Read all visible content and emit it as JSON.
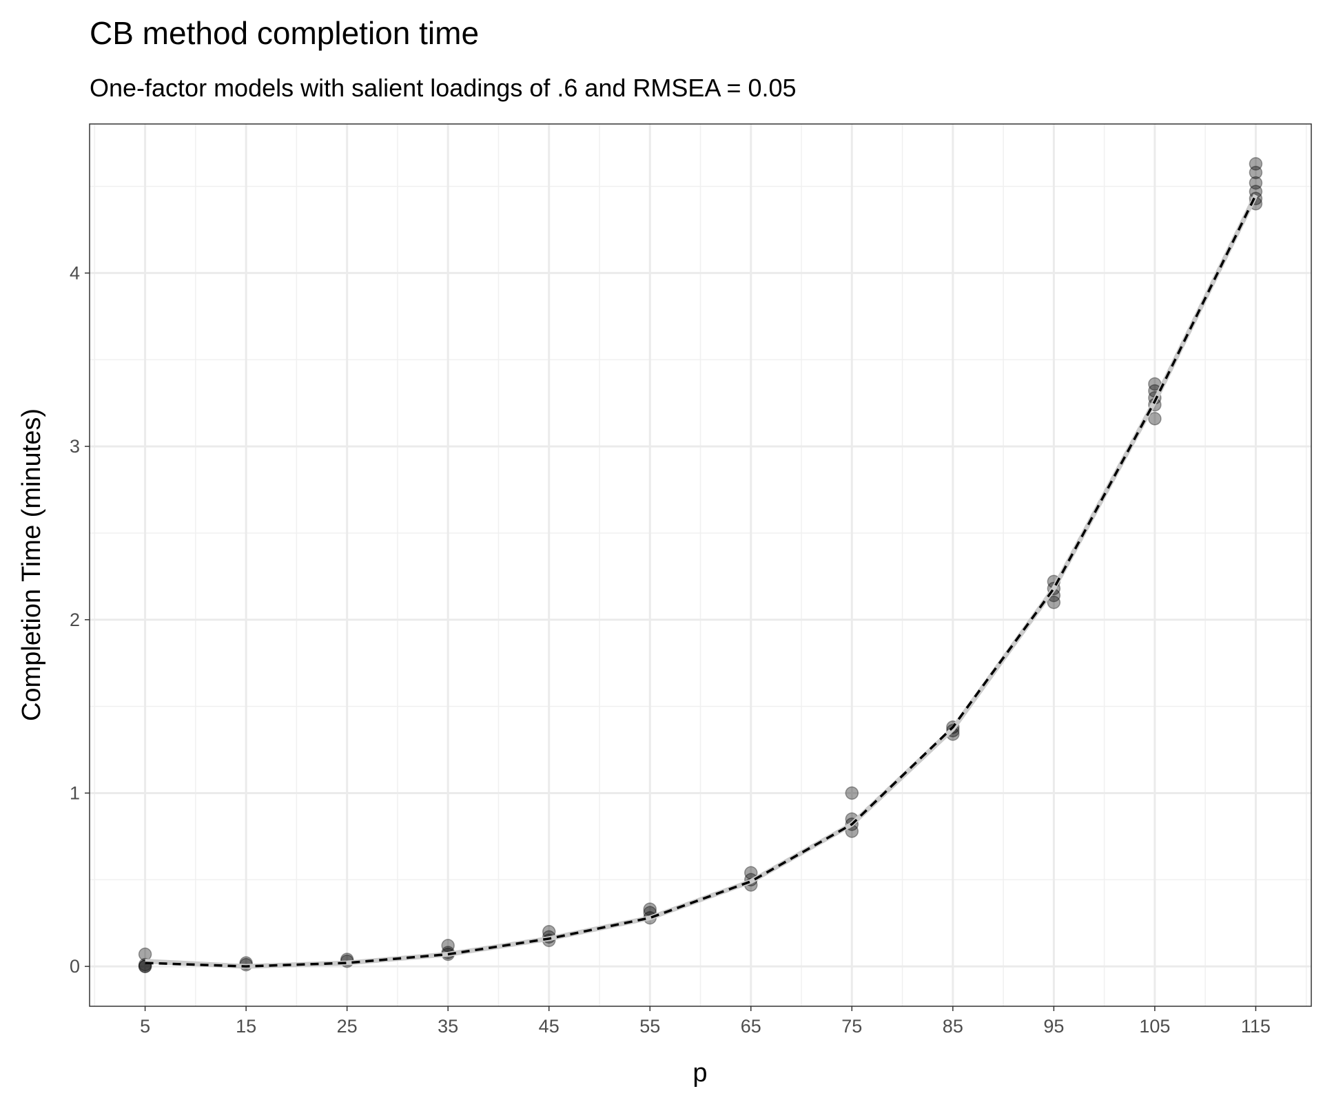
{
  "chart_data": {
    "type": "scatter",
    "title": "CB method completion time",
    "subtitle": "One-factor models with salient loadings of .6 and RMSEA = 0.05",
    "x_label": "p",
    "y_label": "Completion Time (minutes)",
    "xlim": [
      -0.5,
      120.5
    ],
    "ylim": [
      -0.23,
      4.86
    ],
    "xticks": [
      5,
      15,
      25,
      35,
      45,
      55,
      65,
      75,
      85,
      95,
      105,
      115
    ],
    "yticks": [
      0,
      1,
      2,
      3,
      4
    ],
    "xminor_ticks": [
      0,
      10,
      20,
      30,
      40,
      50,
      60,
      70,
      80,
      90,
      100,
      110,
      120
    ],
    "yminor_ticks": [
      0.5,
      1.5,
      2.5,
      3.5,
      4.5
    ],
    "grid": true,
    "series": [
      {
        "type": "scatter",
        "color": "#000000",
        "opacity": 0.35,
        "x": [
          5,
          5,
          5,
          5,
          15,
          15,
          25,
          25,
          35,
          35,
          35,
          45,
          45,
          45,
          55,
          55,
          55,
          65,
          65,
          65,
          75,
          75,
          75,
          75,
          85,
          85,
          85,
          95,
          95,
          95,
          95,
          105,
          105,
          105,
          105,
          105,
          115,
          115,
          115,
          115,
          115,
          115
        ],
        "y": [
          0.07,
          0.0,
          0.01,
          0.0,
          0.02,
          0.01,
          0.04,
          0.03,
          0.12,
          0.08,
          0.07,
          0.2,
          0.15,
          0.17,
          0.33,
          0.28,
          0.31,
          0.54,
          0.5,
          0.47,
          1.0,
          0.85,
          0.82,
          0.78,
          1.38,
          1.36,
          1.34,
          2.22,
          2.18,
          2.14,
          2.1,
          3.36,
          3.32,
          3.28,
          3.24,
          3.16,
          4.63,
          4.58,
          4.52,
          4.47,
          4.43,
          4.4
        ]
      },
      {
        "type": "smooth",
        "color": "#cccccc",
        "x": [
          5,
          15,
          25,
          35,
          45,
          55,
          65,
          75,
          85,
          95,
          105,
          115
        ],
        "y": [
          0.03,
          0.0,
          0.02,
          0.07,
          0.16,
          0.28,
          0.49,
          0.82,
          1.37,
          2.18,
          3.26,
          4.45
        ]
      },
      {
        "type": "fit",
        "color": "#000000",
        "dashed": true,
        "x": [
          5,
          15,
          25,
          35,
          45,
          55,
          65,
          75,
          85,
          95,
          105,
          115
        ],
        "y": [
          0.02,
          0.0,
          0.02,
          0.07,
          0.16,
          0.28,
          0.49,
          0.82,
          1.38,
          2.18,
          3.26,
          4.45
        ]
      }
    ]
  }
}
